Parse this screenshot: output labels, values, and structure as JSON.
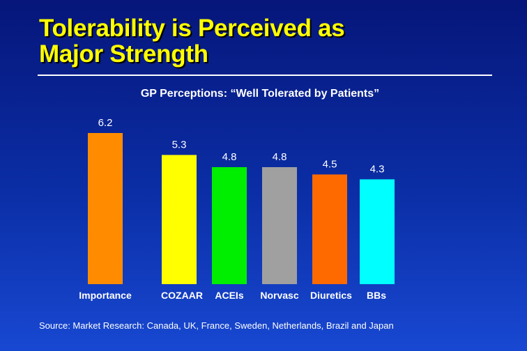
{
  "slide": {
    "title_line1": "Tolerability is Perceived as",
    "title_line2": "Major Strength",
    "source": "Source: Market Research: Canada, UK, France, Sweden, Netherlands, Brazil and Japan"
  },
  "chart_data": {
    "type": "bar",
    "title": "GP Perceptions: “Well Tolerated by Patients”",
    "categories": [
      "Importance",
      "COZAAR",
      "ACEIs",
      "Norvasc",
      "Diuretics",
      "BBs"
    ],
    "values": [
      6.2,
      5.3,
      4.8,
      4.8,
      4.5,
      4.3
    ],
    "value_labels": [
      "6.2",
      "5.3",
      "4.8",
      "4.8",
      "4.5",
      "4.3"
    ],
    "colors": [
      "#ff8c00",
      "#ffff00",
      "#00ee00",
      "#a0a0a0",
      "#ff6a00",
      "#00ffff"
    ],
    "grid": false,
    "legend": "none",
    "ylim": [
      0,
      6.2
    ]
  }
}
